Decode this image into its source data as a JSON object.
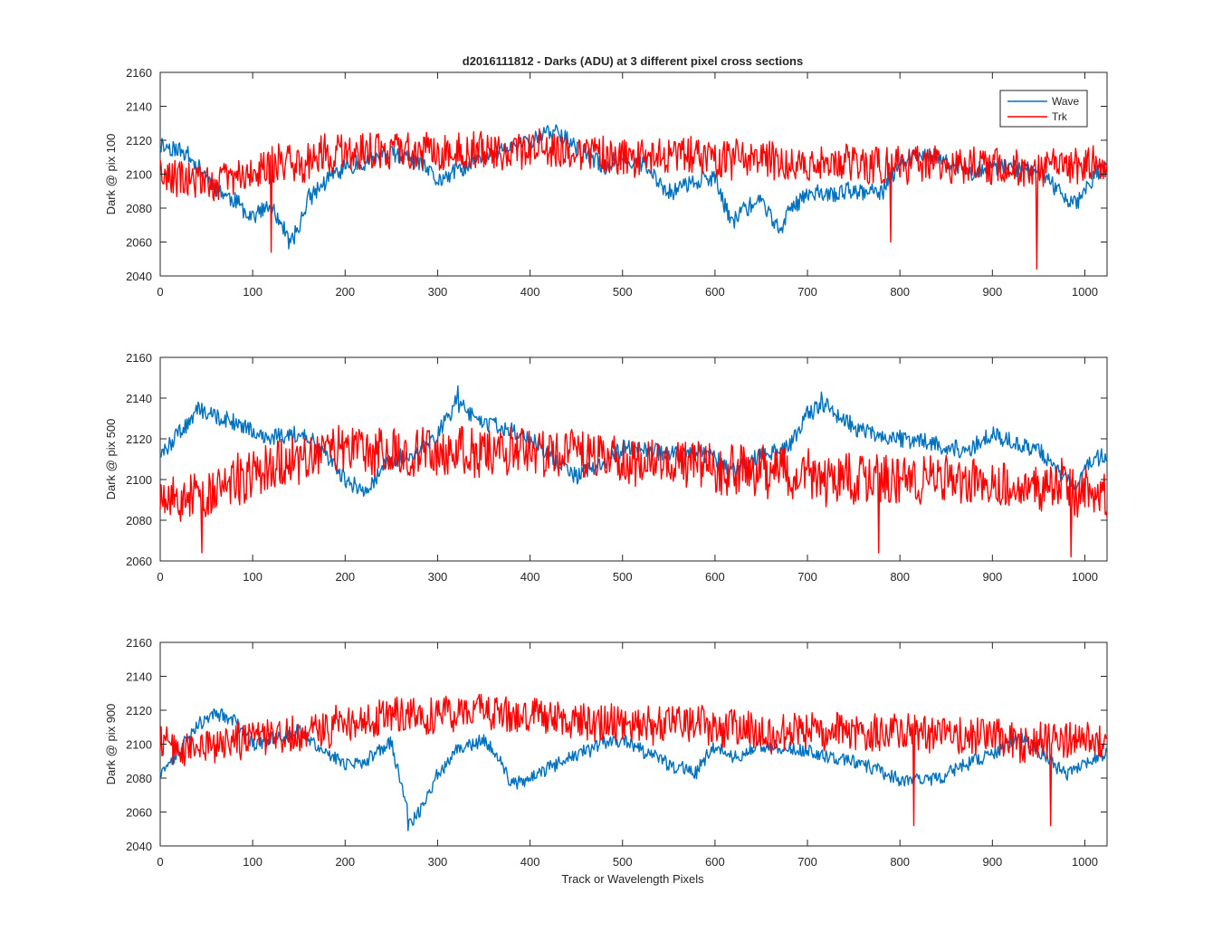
{
  "figure": {
    "title": "d2016111812 - Darks (ADU) at 3 different pixel cross sections",
    "xlabel": "Track or Wavelength Pixels"
  },
  "colors": {
    "Wave": "#0072bd",
    "Trk": "#ff0000",
    "axis": "#262626"
  },
  "legend": {
    "placement": "top-right",
    "entries": [
      "Wave",
      "Trk"
    ]
  },
  "chart_data": [
    {
      "type": "line",
      "ylabel": "Dark @ pix 100",
      "xlim": [
        0,
        1024
      ],
      "ylim": [
        2040,
        2160
      ],
      "xticks": [
        0,
        100,
        200,
        300,
        400,
        500,
        600,
        700,
        800,
        900,
        1000
      ],
      "yticks": [
        2040,
        2060,
        2080,
        2100,
        2120,
        2140,
        2160
      ],
      "grid": false,
      "x": [
        0,
        30,
        60,
        90,
        100,
        120,
        130,
        140,
        150,
        160,
        180,
        200,
        250,
        280,
        300,
        330,
        350,
        380,
        400,
        430,
        450,
        480,
        500,
        520,
        550,
        580,
        600,
        610,
        620,
        630,
        650,
        660,
        670,
        680,
        700,
        720,
        750,
        780,
        800,
        830,
        850,
        880,
        900,
        930,
        950,
        970,
        990,
        1000,
        1010,
        1024
      ],
      "series": [
        {
          "name": "Wave",
          "noise": 5,
          "seed": 11,
          "values": [
            2118,
            2112,
            2092,
            2080,
            2076,
            2080,
            2072,
            2058,
            2068,
            2086,
            2096,
            2104,
            2112,
            2106,
            2096,
            2104,
            2110,
            2116,
            2120,
            2126,
            2116,
            2104,
            2110,
            2106,
            2090,
            2096,
            2098,
            2082,
            2072,
            2080,
            2084,
            2076,
            2066,
            2078,
            2090,
            2088,
            2090,
            2088,
            2108,
            2112,
            2106,
            2102,
            2104,
            2104,
            2102,
            2090,
            2082,
            2090,
            2100,
            2104
          ]
        },
        {
          "name": "Trk",
          "noise": 11,
          "seed": 29,
          "anchors": [
            [
              120,
              2054
            ],
            [
              790,
              2060
            ],
            [
              948,
              2044
            ]
          ],
          "values": [
            2100,
            2096,
            2096,
            2098,
            2100,
            2104,
            2106,
            2108,
            2108,
            2110,
            2112,
            2112,
            2114,
            2114,
            2114,
            2114,
            2114,
            2114,
            2114,
            2114,
            2112,
            2112,
            2112,
            2112,
            2112,
            2110,
            2110,
            2110,
            2108,
            2108,
            2108,
            2108,
            2106,
            2106,
            2106,
            2106,
            2106,
            2106,
            2106,
            2106,
            2106,
            2106,
            2104,
            2104,
            2104,
            2104,
            2104,
            2104,
            2104,
            2104
          ]
        }
      ]
    },
    {
      "type": "line",
      "ylabel": "Dark @ pix 500",
      "xlim": [
        0,
        1024
      ],
      "ylim": [
        2060,
        2160
      ],
      "xticks": [
        0,
        100,
        200,
        300,
        400,
        500,
        600,
        700,
        800,
        900,
        1000
      ],
      "yticks": [
        2060,
        2080,
        2100,
        2120,
        2140,
        2160
      ],
      "grid": false,
      "x": [
        0,
        20,
        40,
        60,
        80,
        100,
        120,
        140,
        160,
        180,
        200,
        220,
        250,
        280,
        300,
        320,
        350,
        380,
        400,
        420,
        450,
        480,
        500,
        520,
        550,
        580,
        600,
        620,
        650,
        680,
        700,
        720,
        750,
        780,
        800,
        830,
        850,
        870,
        900,
        930,
        950,
        970,
        990,
        1000,
        1010,
        1024
      ],
      "series": [
        {
          "name": "Wave",
          "noise": 4,
          "seed": 47,
          "anchors": [
            [
              322,
              2146
            ],
            [
              715,
              2143
            ]
          ],
          "values": [
            2112,
            2122,
            2134,
            2132,
            2128,
            2124,
            2120,
            2122,
            2122,
            2112,
            2100,
            2094,
            2110,
            2114,
            2122,
            2138,
            2128,
            2124,
            2120,
            2112,
            2102,
            2108,
            2116,
            2116,
            2112,
            2114,
            2110,
            2104,
            2112,
            2116,
            2132,
            2136,
            2126,
            2122,
            2120,
            2118,
            2116,
            2114,
            2122,
            2118,
            2114,
            2104,
            2098,
            2104,
            2110,
            2112
          ]
        },
        {
          "name": "Trk",
          "noise": 12,
          "seed": 53,
          "anchors": [
            [
              45,
              2064
            ],
            [
              777,
              2064
            ],
            [
              985,
              2062
            ]
          ],
          "values": [
            2096,
            2092,
            2092,
            2094,
            2098,
            2102,
            2106,
            2108,
            2112,
            2114,
            2114,
            2114,
            2114,
            2114,
            2114,
            2114,
            2114,
            2114,
            2114,
            2112,
            2112,
            2112,
            2110,
            2110,
            2108,
            2108,
            2106,
            2104,
            2104,
            2102,
            2102,
            2100,
            2100,
            2100,
            2100,
            2100,
            2098,
            2098,
            2098,
            2096,
            2096,
            2096,
            2096,
            2096,
            2096,
            2096
          ]
        }
      ]
    },
    {
      "type": "line",
      "ylabel": "Dark @ pix 900",
      "xlim": [
        0,
        1024
      ],
      "ylim": [
        2040,
        2160
      ],
      "xticks": [
        0,
        100,
        200,
        300,
        400,
        500,
        600,
        700,
        800,
        900,
        1000
      ],
      "yticks": [
        2040,
        2060,
        2080,
        2100,
        2120,
        2140,
        2160
      ],
      "grid": false,
      "x": [
        0,
        20,
        40,
        60,
        80,
        100,
        150,
        180,
        200,
        220,
        250,
        262,
        270,
        280,
        300,
        320,
        350,
        370,
        380,
        400,
        420,
        450,
        480,
        500,
        550,
        580,
        600,
        620,
        650,
        700,
        750,
        780,
        800,
        830,
        850,
        880,
        900,
        930,
        950,
        980,
        1000,
        1010,
        1024
      ],
      "series": [
        {
          "name": "Wave",
          "noise": 4,
          "seed": 71,
          "anchors": [
            [
              268,
              2049
            ]
          ],
          "values": [
            2082,
            2096,
            2112,
            2118,
            2114,
            2100,
            2108,
            2094,
            2088,
            2090,
            2100,
            2074,
            2054,
            2060,
            2082,
            2096,
            2102,
            2090,
            2076,
            2080,
            2086,
            2094,
            2100,
            2102,
            2088,
            2084,
            2100,
            2092,
            2100,
            2096,
            2090,
            2084,
            2078,
            2078,
            2082,
            2090,
            2094,
            2104,
            2096,
            2082,
            2088,
            2092,
            2094
          ]
        },
        {
          "name": "Trk",
          "noise": 11,
          "seed": 89,
          "anchors": [
            [
              815,
              2052
            ],
            [
              963,
              2052
            ]
          ],
          "values": [
            2100,
            2098,
            2098,
            2100,
            2102,
            2104,
            2106,
            2110,
            2112,
            2114,
            2116,
            2116,
            2116,
            2118,
            2118,
            2118,
            2118,
            2118,
            2116,
            2116,
            2116,
            2114,
            2114,
            2112,
            2112,
            2112,
            2110,
            2110,
            2108,
            2108,
            2108,
            2106,
            2106,
            2106,
            2104,
            2104,
            2104,
            2102,
            2102,
            2102,
            2102,
            2100,
            2100
          ]
        }
      ]
    }
  ]
}
